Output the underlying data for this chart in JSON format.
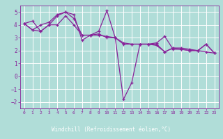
{
  "xlabel": "Windchill (Refroidissement éolien,°C)",
  "bg_color": "#b0ddd8",
  "plot_bg_color": "#b0ddd8",
  "xlabel_bg_color": "#7766aa",
  "xlabel_text_color": "#ffffff",
  "line_color": "#882299",
  "grid_color": "#ffffff",
  "xlim": [
    -0.5,
    23.5
  ],
  "ylim": [
    -2.5,
    5.5
  ],
  "yticks": [
    -2,
    -1,
    0,
    1,
    2,
    3,
    4,
    5
  ],
  "xticks": [
    0,
    1,
    2,
    3,
    4,
    5,
    6,
    7,
    8,
    9,
    10,
    11,
    12,
    13,
    14,
    15,
    16,
    17,
    18,
    19,
    20,
    21,
    22,
    23
  ],
  "series": [
    {
      "x": [
        0,
        1,
        2,
        3,
        4,
        5,
        6,
        7,
        8,
        9,
        10,
        11,
        12,
        13,
        14,
        15,
        16,
        17,
        18,
        19,
        20,
        21,
        22,
        23
      ],
      "y": [
        4.1,
        4.3,
        3.5,
        4.0,
        4.7,
        5.0,
        4.8,
        2.8,
        3.2,
        3.3,
        3.0,
        3.0,
        2.5,
        2.5,
        2.5,
        2.5,
        2.5,
        1.9,
        2.2,
        2.2,
        2.1,
        2.0,
        2.5,
        1.8
      ]
    },
    {
      "x": [
        0,
        1,
        2,
        3,
        4,
        5,
        6,
        7,
        8,
        9,
        10,
        11,
        12,
        13,
        14,
        15,
        16,
        17,
        18,
        19,
        20,
        21,
        22,
        23
      ],
      "y": [
        4.1,
        3.6,
        4.0,
        4.2,
        4.8,
        5.0,
        4.5,
        3.2,
        3.2,
        3.5,
        5.1,
        3.0,
        -1.8,
        -0.5,
        2.5,
        2.5,
        2.6,
        3.1,
        2.1,
        2.1,
        2.0,
        2.0,
        1.9,
        1.8
      ]
    },
    {
      "x": [
        0,
        1,
        2,
        3,
        4,
        5,
        6,
        7,
        8,
        9,
        10,
        11,
        12,
        13,
        14,
        15,
        16,
        17,
        18,
        19,
        20,
        21,
        22,
        23
      ],
      "y": [
        4.1,
        3.6,
        3.5,
        4.0,
        4.0,
        4.7,
        4.0,
        3.2,
        3.2,
        3.2,
        3.1,
        3.0,
        2.6,
        2.5,
        2.5,
        2.5,
        2.4,
        1.9,
        2.2,
        2.1,
        2.0,
        2.0,
        2.5,
        1.8
      ]
    }
  ]
}
